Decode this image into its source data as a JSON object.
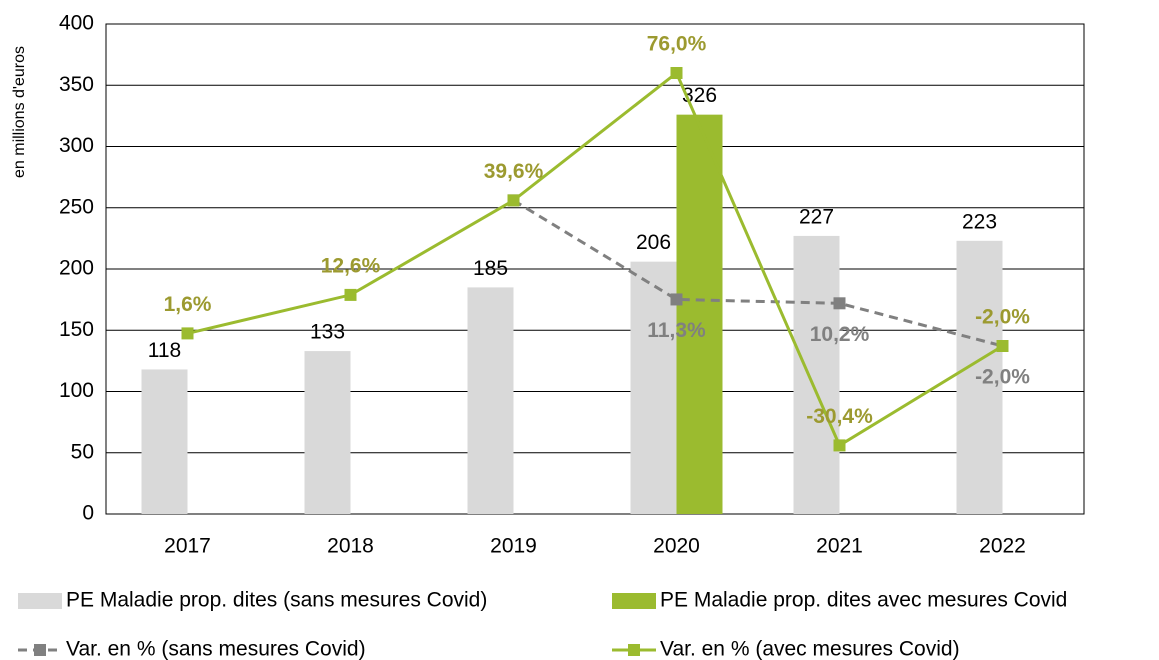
{
  "chart_data": {
    "type": "bar",
    "y_label": "en millions d'euros",
    "categories": [
      "2017",
      "2018",
      "2019",
      "2020",
      "2021",
      "2022"
    ],
    "series": [
      {
        "name": "PE Maladie prop. dites (sans mesures Covid)",
        "type": "bar",
        "color": "#d9d9d9",
        "values": [
          118,
          133,
          185,
          206,
          227,
          223
        ]
      },
      {
        "name": "PE Maladie prop. dites avec mesures Covid",
        "type": "bar",
        "color": "#9bbb2f",
        "values": [
          null,
          null,
          null,
          326,
          null,
          null
        ]
      },
      {
        "name": "Var. en % (sans mesures Covid)",
        "type": "line",
        "axis": "y2",
        "dashed": true,
        "color": "#808080",
        "label_color": "#808080",
        "values": [
          null,
          null,
          39.6,
          11.3,
          10.2,
          -2.0
        ],
        "value_labels": [
          null,
          null,
          null,
          "11,3%",
          "10,2%",
          "-2,0%"
        ]
      },
      {
        "name": "Var. en % (avec mesures Covid)",
        "type": "line",
        "axis": "y2",
        "dashed": false,
        "color": "#9bbb2f",
        "label_color": "#9c9a30",
        "values": [
          1.6,
          12.6,
          39.6,
          76.0,
          -30.4,
          -2.0
        ],
        "value_labels": [
          "1,6%",
          "12,6%",
          "39,6%",
          "76,0%",
          "-30,4%",
          "-2,0%"
        ]
      }
    ],
    "ylim": [
      0,
      400
    ],
    "yticks": [
      0,
      50,
      100,
      150,
      200,
      250,
      300,
      350,
      400
    ],
    "y2lim": [
      -50,
      90
    ],
    "grid": true,
    "legend": "bottom"
  }
}
